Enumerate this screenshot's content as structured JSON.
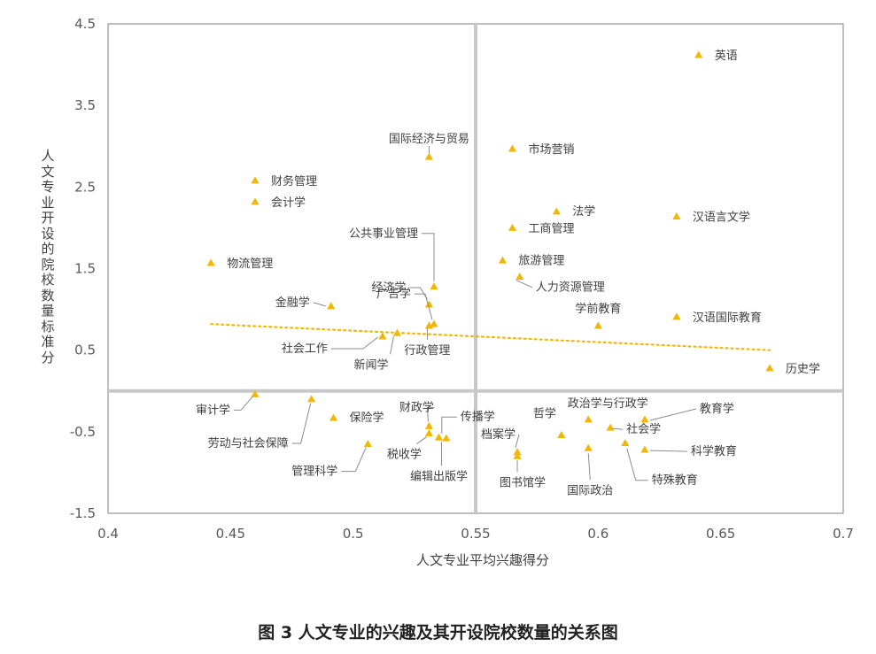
{
  "chart_data": {
    "type": "scatter",
    "xlabel": "人文专业平均兴趣得分",
    "ylabel": "人文专业开设的院校数量标准分",
    "xlim": [
      0.4,
      0.7
    ],
    "ylim": [
      -1.5,
      4.5
    ],
    "x_ticks": [
      "0.4",
      "0.45",
      "0.5",
      "0.55",
      "0.6",
      "0.65",
      "0.7"
    ],
    "y_ticks": [
      "4.5",
      "3.5",
      "2.5",
      "1.5",
      "0.5",
      "-0.5",
      "-1.5"
    ],
    "quadrant_lines": {
      "x": 0.55,
      "y": 0.0
    },
    "trendline": {
      "x": [
        0.442,
        0.67
      ],
      "y": [
        0.82,
        0.5
      ],
      "style": "dotted"
    },
    "marker_color": "#F2B705",
    "trend_color": "#F2B705",
    "points": [
      {
        "label": "英语",
        "x": 0.641,
        "y": 4.12
      },
      {
        "label": "国际经济与贸易",
        "x": 0.531,
        "y": 2.87
      },
      {
        "label": "市场营销",
        "x": 0.565,
        "y": 2.97
      },
      {
        "label": "财务管理",
        "x": 0.46,
        "y": 2.58
      },
      {
        "label": "会计学",
        "x": 0.46,
        "y": 2.32
      },
      {
        "label": "法学",
        "x": 0.583,
        "y": 2.2
      },
      {
        "label": "汉语言文学",
        "x": 0.632,
        "y": 2.14
      },
      {
        "label": "工商管理",
        "x": 0.565,
        "y": 2.0
      },
      {
        "label": "公共事业管理",
        "x": 0.533,
        "y": 1.28
      },
      {
        "label": "物流管理",
        "x": 0.442,
        "y": 1.57
      },
      {
        "label": "旅游管理",
        "x": 0.561,
        "y": 1.6
      },
      {
        "label": "人力资源管理",
        "x": 0.568,
        "y": 1.4
      },
      {
        "label": "经济学",
        "x": 0.531,
        "y": 1.06
      },
      {
        "label": "金融学",
        "x": 0.491,
        "y": 1.04
      },
      {
        "label": "广告学",
        "x": 0.533,
        "y": 0.82
      },
      {
        "label": "行政管理",
        "x": 0.531,
        "y": 0.8
      },
      {
        "label": "学前教育",
        "x": 0.6,
        "y": 0.8
      },
      {
        "label": "汉语国际教育",
        "x": 0.632,
        "y": 0.91
      },
      {
        "label": "社会工作",
        "x": 0.512,
        "y": 0.67
      },
      {
        "label": "新闻学",
        "x": 0.518,
        "y": 0.71
      },
      {
        "label": "历史学",
        "x": 0.67,
        "y": 0.28
      },
      {
        "label": "审计学",
        "x": 0.46,
        "y": -0.04
      },
      {
        "label": "劳动与社会保障",
        "x": 0.483,
        "y": -0.1
      },
      {
        "label": "保险学",
        "x": 0.492,
        "y": -0.33
      },
      {
        "label": "财政学",
        "x": 0.531,
        "y": -0.43
      },
      {
        "label": "传播学",
        "x": 0.538,
        "y": -0.58
      },
      {
        "label": "税收学",
        "x": 0.531,
        "y": -0.52
      },
      {
        "label": "编辑出版学",
        "x": 0.535,
        "y": -0.57
      },
      {
        "label": "管理科学",
        "x": 0.506,
        "y": -0.65
      },
      {
        "label": "哲学",
        "x": 0.585,
        "y": -0.54
      },
      {
        "label": "档案学",
        "x": 0.567,
        "y": -0.75
      },
      {
        "label": "图书馆学",
        "x": 0.567,
        "y": -0.8
      },
      {
        "label": "政治学与行政学",
        "x": 0.596,
        "y": -0.35
      },
      {
        "label": "社会学",
        "x": 0.605,
        "y": -0.45
      },
      {
        "label": "国际政治",
        "x": 0.596,
        "y": -0.7
      },
      {
        "label": "教育学",
        "x": 0.619,
        "y": -0.35
      },
      {
        "label": "科学教育",
        "x": 0.619,
        "y": -0.72
      },
      {
        "label": "特殊教育",
        "x": 0.611,
        "y": -0.64
      }
    ]
  },
  "caption": "图 3 人文专业的兴趣及其开设院校数量的关系图"
}
